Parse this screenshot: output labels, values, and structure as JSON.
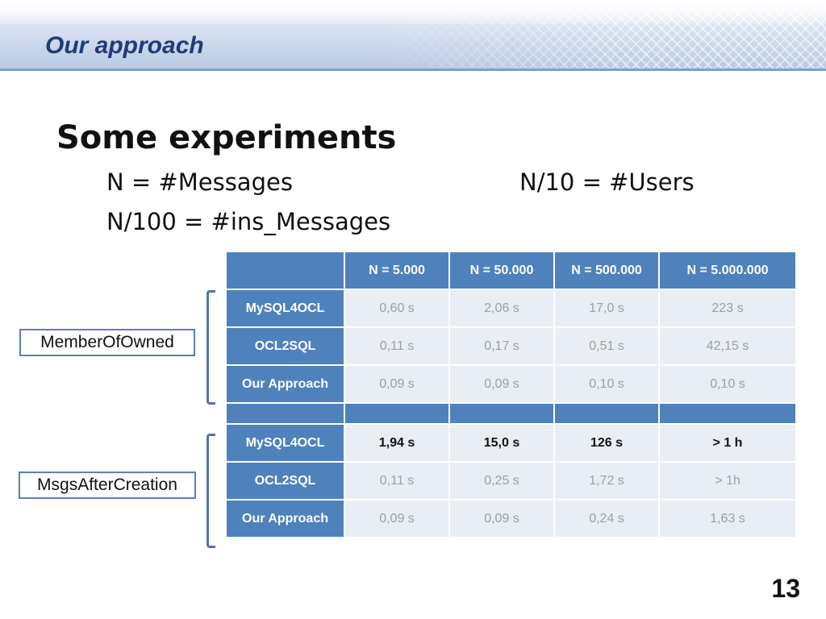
{
  "header": {
    "title": "Our approach"
  },
  "content": {
    "heading": "Some experiments",
    "lines": [
      "N = #Messages",
      "N/10 = #Users",
      "N/100 = #ins_Messages"
    ]
  },
  "table": {
    "columns": [
      "",
      "N = 5.000",
      "N = 50.000",
      "N = 500.000",
      "N = 5.000.000"
    ],
    "rows": [
      {
        "label": "MySQL4OCL",
        "values": [
          "0,60 s",
          "2,06 s",
          "17,0 s",
          "223 s"
        ]
      },
      {
        "label": "OCL2SQL",
        "values": [
          "0,11 s",
          "0,17 s",
          "0,51 s",
          "42,15 s"
        ]
      },
      {
        "label": "Our Approach",
        "values": [
          "0,09 s",
          "0,09 s",
          "0,10 s",
          "0,10 s"
        ]
      },
      {
        "label": "MySQL4OCL",
        "values": [
          "1,94 s",
          "15,0 s",
          "126 s",
          "> 1 h"
        ]
      },
      {
        "label": "OCL2SQL",
        "values": [
          "0,11 s",
          "0,25 s",
          "1,72 s",
          "> 1h"
        ]
      },
      {
        "label": "Our Approach",
        "values": [
          "0,09 s",
          "0,09 s",
          "0,24 s",
          "1,63 s"
        ]
      }
    ]
  },
  "groups": [
    "MemberOfOwned",
    "MsgsAfterCreation"
  ],
  "page_number": "13",
  "colors": {
    "accent": "#4f81bd",
    "title": "#1f3c7a",
    "cell": "#e9edf4"
  }
}
